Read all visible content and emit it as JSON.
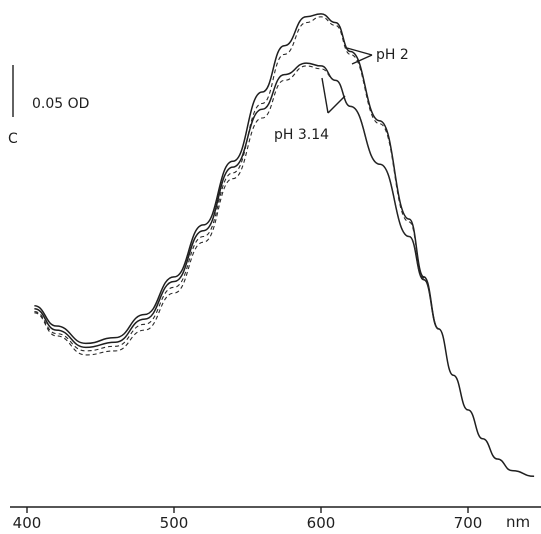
{
  "chart_data": {
    "type": "line",
    "title": "",
    "xlabel": "",
    "ylabel": "",
    "x_unit": "nm",
    "xlim": [
      400,
      750
    ],
    "x_ticks": [
      {
        "value": 400,
        "label": "400"
      },
      {
        "value": 500,
        "label": "500"
      },
      {
        "value": 600,
        "label": "600"
      },
      {
        "value": 700,
        "label": "700"
      }
    ],
    "y_axis_marker": "C",
    "scale_bar_label": "0.05 OD",
    "grid": false,
    "legend": "none",
    "series": [
      {
        "style": "solid",
        "group": "pH 2",
        "points": [
          [
            405,
            0.31
          ],
          [
            420,
            0.275
          ],
          [
            440,
            0.245
          ],
          [
            460,
            0.255
          ],
          [
            480,
            0.295
          ],
          [
            500,
            0.36
          ],
          [
            520,
            0.45
          ],
          [
            540,
            0.56
          ],
          [
            560,
            0.68
          ],
          [
            575,
            0.76
          ],
          [
            590,
            0.81
          ],
          [
            600,
            0.815
          ],
          [
            610,
            0.8
          ],
          [
            620,
            0.75
          ],
          [
            640,
            0.63
          ],
          [
            660,
            0.46
          ],
          [
            670,
            0.36
          ],
          [
            680,
            0.27
          ],
          [
            690,
            0.19
          ],
          [
            700,
            0.13
          ],
          [
            710,
            0.08
          ],
          [
            720,
            0.045
          ],
          [
            730,
            0.025
          ],
          [
            745,
            0.015
          ]
        ]
      },
      {
        "style": "dashed",
        "group": "pH 2",
        "points": [
          [
            405,
            0.3
          ],
          [
            420,
            0.262
          ],
          [
            440,
            0.232
          ],
          [
            460,
            0.24
          ],
          [
            480,
            0.278
          ],
          [
            500,
            0.342
          ],
          [
            520,
            0.43
          ],
          [
            540,
            0.54
          ],
          [
            560,
            0.66
          ],
          [
            575,
            0.745
          ],
          [
            590,
            0.8
          ],
          [
            600,
            0.81
          ],
          [
            610,
            0.795
          ],
          [
            620,
            0.745
          ],
          [
            640,
            0.625
          ],
          [
            660,
            0.455
          ],
          [
            670,
            0.358
          ],
          [
            680,
            0.27
          ]
        ]
      },
      {
        "style": "solid",
        "group": "pH 3.14",
        "points": [
          [
            405,
            0.305
          ],
          [
            420,
            0.268
          ],
          [
            440,
            0.238
          ],
          [
            460,
            0.247
          ],
          [
            480,
            0.287
          ],
          [
            500,
            0.352
          ],
          [
            520,
            0.44
          ],
          [
            540,
            0.55
          ],
          [
            560,
            0.65
          ],
          [
            575,
            0.71
          ],
          [
            590,
            0.73
          ],
          [
            600,
            0.725
          ],
          [
            610,
            0.7
          ],
          [
            620,
            0.655
          ],
          [
            640,
            0.555
          ],
          [
            660,
            0.43
          ],
          [
            670,
            0.355
          ],
          [
            680,
            0.27
          ]
        ]
      },
      {
        "style": "dashed",
        "group": "pH 3.14",
        "points": [
          [
            405,
            0.298
          ],
          [
            420,
            0.258
          ],
          [
            440,
            0.225
          ],
          [
            460,
            0.232
          ],
          [
            480,
            0.268
          ],
          [
            500,
            0.332
          ],
          [
            520,
            0.42
          ],
          [
            540,
            0.53
          ],
          [
            560,
            0.635
          ],
          [
            575,
            0.7
          ],
          [
            590,
            0.725
          ],
          [
            600,
            0.72
          ],
          [
            610,
            0.7
          ],
          [
            620,
            0.655
          ],
          [
            640,
            0.555
          ],
          [
            660,
            0.43
          ],
          [
            670,
            0.355
          ],
          [
            680,
            0.27
          ]
        ]
      }
    ],
    "annotations": [
      {
        "text": "pH 2"
      },
      {
        "text": "pH 3.14"
      }
    ]
  }
}
